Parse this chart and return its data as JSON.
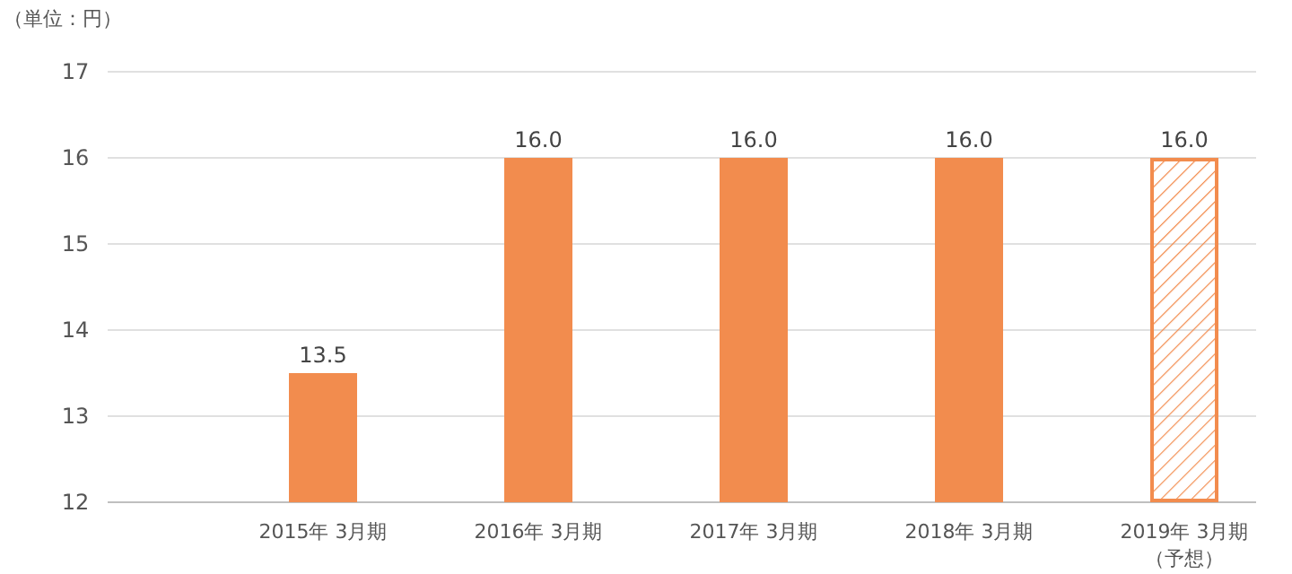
{
  "chart_data": {
    "type": "bar",
    "ylabel": "（単位：円）",
    "categories": [
      "2015年 3月期",
      "2016年 3月期",
      "2017年 3月期",
      "2018年 3月期",
      "2019年 3月期（予想）"
    ],
    "series": [
      {
        "color": "#f28c4e",
        "values": [
          13.5,
          16,
          16,
          16,
          null
        ],
        "value_labels": [
          "13.5",
          "16.0",
          "16.0",
          "16.0",
          null
        ]
      },
      {
        "color": "#f28c4e",
        "values": [
          null,
          null,
          null,
          null,
          16
        ],
        "value_labels": [
          null,
          null,
          null,
          null,
          "16.0"
        ]
      }
    ],
    "ylim": [
      12,
      17
    ],
    "yticks": [
      12,
      13,
      14,
      15,
      16,
      17
    ],
    "grid": "y"
  }
}
